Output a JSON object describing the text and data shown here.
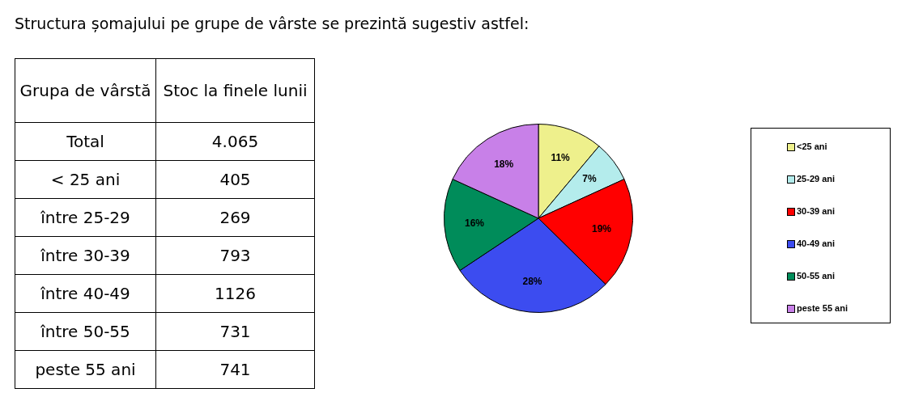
{
  "chart_data": {
    "type": "pie",
    "title": "Structura șomajului pe grupe de vârste se prezintă sugestiv astfel:",
    "categories": [
      "<25 ani",
      "25-29 ani",
      "30-39 ani",
      "40-49 ani",
      "50-55 ani",
      "peste 55 ani"
    ],
    "values": [
      11,
      7,
      19,
      28,
      16,
      18
    ],
    "value_labels": [
      "11%",
      "7%",
      "19%",
      "28%",
      "16%",
      "18%"
    ],
    "colors": [
      "#eef08c",
      "#b4ecec",
      "#ff0000",
      "#3c4cf0",
      "#008c5a",
      "#c880e8"
    ],
    "annotations": [
      "Grupa de vârstă",
      "Stoc la finele lunii",
      "Total",
      "4.065",
      "< 25 ani",
      "405",
      "între 25-29",
      "269",
      "între 30-39",
      "793",
      "între 40-49",
      "1126",
      "între 50-55",
      "731",
      "peste 55 ani",
      "741"
    ],
    "legend": "right"
  }
}
